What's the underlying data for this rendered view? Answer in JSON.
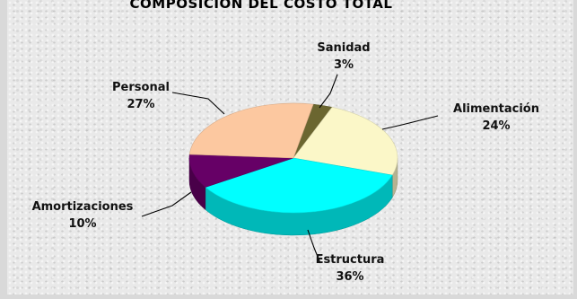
{
  "chart_data": {
    "type": "pie",
    "title": "COMPOSICIÓN DEL COSTO TOTAL",
    "slices": [
      {
        "label": "Sanidad",
        "value": 3,
        "display": "3%",
        "color": "#6b6630"
      },
      {
        "label": "Alimentación",
        "value": 24,
        "display": "24%",
        "color": "#fbf7c8"
      },
      {
        "label": "Estructura",
        "value": 36,
        "display": "36%",
        "color": "#00ffff"
      },
      {
        "label": "Amortizaciones",
        "value": 10,
        "display": "10%",
        "color": "#660066"
      },
      {
        "label": "Personal",
        "value": 27,
        "display": "27%",
        "color": "#fcc8a0"
      }
    ],
    "legend": "none"
  }
}
